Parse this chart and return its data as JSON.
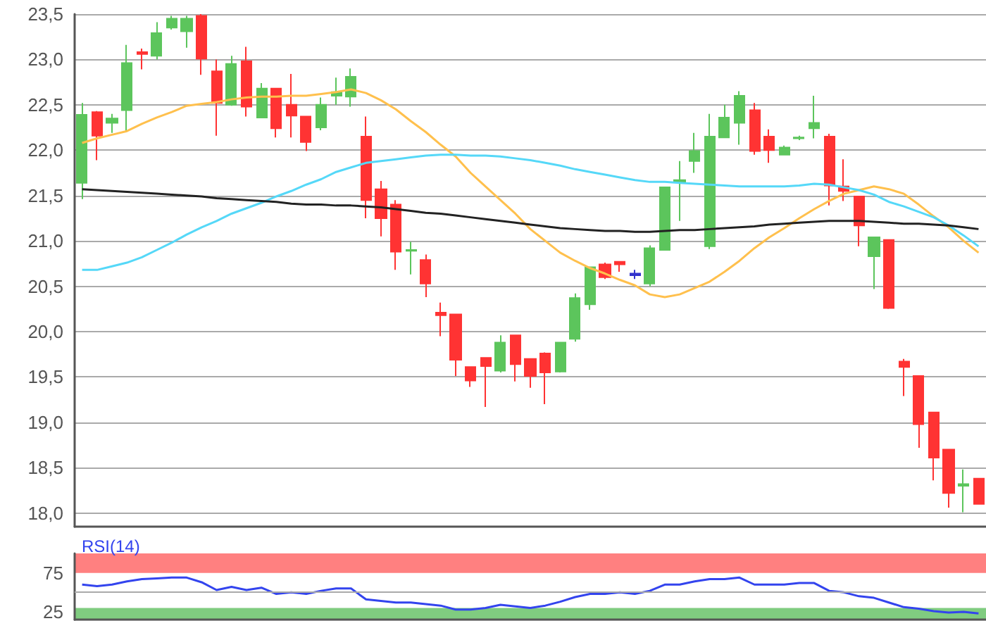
{
  "chart_data": [
    {
      "type": "candlestick",
      "tick_labels": "y",
      "grid": "y",
      "marker": "none",
      "categories": [
        null,
        null,
        null,
        null,
        null,
        null,
        null,
        null,
        null,
        null,
        null,
        null,
        null,
        null,
        null,
        null,
        null,
        null,
        null,
        null,
        null,
        null,
        null,
        null,
        null,
        null,
        null,
        null,
        null,
        null,
        null,
        null,
        null,
        null,
        null,
        null,
        null,
        null,
        null,
        null,
        null,
        null,
        null,
        null,
        null,
        null,
        null,
        null,
        null,
        null,
        null,
        null,
        null,
        null,
        null,
        null,
        null,
        null,
        null,
        null,
        null
      ],
      "ylim": [
        17.85,
        23.5
      ],
      "yticks": [
        {
          "value": 18,
          "label": "18,0"
        },
        {
          "value": 18.5,
          "label": "18,5"
        },
        {
          "value": 19,
          "label": "19,0"
        },
        {
          "value": 19.5,
          "label": "19,5"
        },
        {
          "value": 20,
          "label": "20,0"
        },
        {
          "value": 20.5,
          "label": "20,5"
        },
        {
          "value": 21,
          "label": "21,0"
        },
        {
          "value": 21.5,
          "label": "21,5"
        },
        {
          "value": 22,
          "label": "22,0"
        },
        {
          "value": 22.5,
          "label": "22,5"
        },
        {
          "value": 23,
          "label": "23,0"
        },
        {
          "value": 23.5,
          "label": "23,5"
        }
      ],
      "ohlc": [
        [
          21.64,
          22.52,
          21.46,
          22.39
        ],
        [
          22.42,
          22.43,
          21.89,
          22.16
        ],
        [
          22.3,
          22.4,
          22.19,
          22.35
        ],
        [
          22.44,
          23.16,
          22.21,
          22.96
        ],
        [
          23.08,
          23.12,
          22.89,
          23.06
        ],
        [
          23.04,
          23.41,
          23.0,
          23.29
        ],
        [
          23.35,
          23.48,
          23.33,
          23.45
        ],
        [
          23.31,
          23.48,
          23.13,
          23.45
        ],
        [
          23.48,
          23.5,
          22.83,
          23.01
        ],
        [
          22.87,
          23.0,
          22.16,
          22.52
        ],
        [
          22.5,
          23.04,
          22.49,
          22.95
        ],
        [
          22.98,
          23.14,
          22.37,
          22.48
        ],
        [
          22.36,
          22.74,
          22.36,
          22.68
        ],
        [
          22.68,
          22.68,
          22.14,
          22.24
        ],
        [
          22.5,
          22.84,
          22.14,
          22.38
        ],
        [
          22.37,
          22.37,
          21.99,
          22.09
        ],
        [
          22.25,
          22.58,
          22.22,
          22.5
        ],
        [
          22.6,
          22.8,
          22.5,
          22.64
        ],
        [
          22.59,
          22.9,
          22.48,
          22.81
        ],
        [
          22.15,
          22.37,
          21.25,
          21.45
        ],
        [
          21.57,
          21.66,
          21.05,
          21.25
        ],
        [
          21.4,
          21.45,
          20.68,
          20.88
        ],
        [
          20.89,
          20.99,
          20.63,
          20.9
        ],
        [
          20.79,
          20.85,
          20.38,
          20.53
        ],
        [
          20.21,
          20.32,
          19.95,
          20.18
        ],
        [
          20.19,
          20.19,
          19.51,
          19.69
        ],
        [
          19.61,
          19.61,
          19.39,
          19.46
        ],
        [
          19.71,
          19.71,
          19.17,
          19.62
        ],
        [
          19.57,
          19.96,
          19.55,
          19.88
        ],
        [
          19.96,
          19.96,
          19.45,
          19.64
        ],
        [
          19.7,
          19.7,
          19.38,
          19.51
        ],
        [
          19.76,
          19.77,
          19.2,
          19.55
        ],
        [
          19.56,
          19.88,
          19.55,
          19.88
        ],
        [
          19.92,
          20.42,
          19.89,
          20.37
        ],
        [
          20.3,
          20.71,
          20.24,
          20.71
        ],
        [
          20.74,
          20.76,
          20.58,
          20.6
        ],
        [
          20.77,
          20.77,
          20.66,
          20.74
        ],
        [
          20.64,
          20.68,
          20.58,
          20.62
        ],
        [
          20.53,
          20.95,
          20.5,
          20.92
        ],
        [
          20.9,
          21.59,
          20.9,
          21.59
        ],
        [
          21.65,
          21.88,
          21.22,
          21.67
        ],
        [
          21.88,
          22.19,
          21.75,
          21.99
        ],
        [
          20.94,
          22.4,
          20.91,
          22.15
        ],
        [
          22.14,
          22.5,
          22.14,
          22.36
        ],
        [
          22.3,
          22.65,
          22.06,
          22.6
        ],
        [
          22.44,
          22.52,
          21.95,
          21.99
        ],
        [
          22.15,
          22.23,
          21.86,
          22.0
        ],
        [
          21.95,
          22.05,
          21.95,
          22.03
        ],
        [
          22.13,
          22.16,
          22.11,
          22.14
        ],
        [
          22.24,
          22.6,
          22.13,
          22.3
        ],
        [
          22.15,
          22.18,
          21.39,
          21.61
        ],
        [
          21.6,
          21.9,
          21.44,
          21.55
        ],
        [
          21.49,
          21.49,
          20.94,
          21.17
        ],
        [
          20.83,
          21.04,
          20.47,
          21.04
        ],
        [
          21.01,
          21.01,
          20.25,
          20.26
        ],
        [
          19.67,
          19.7,
          19.29,
          19.61
        ],
        [
          19.51,
          19.51,
          18.72,
          18.98
        ],
        [
          19.11,
          19.11,
          18.36,
          18.61
        ],
        [
          18.7,
          18.7,
          18.06,
          18.22
        ],
        [
          18.3,
          18.48,
          18.01,
          18.32
        ],
        [
          18.38,
          18.38,
          18.1,
          18.1
        ]
      ],
      "colors": [
        "#5cc55c",
        "#ff3333",
        "#5cc55c",
        "#5cc55c",
        "#ff3333",
        "#5cc55c",
        "#5cc55c",
        "#5cc55c",
        "#ff3333",
        "#ff3333",
        "#5cc55c",
        "#ff3333",
        "#5cc55c",
        "#ff3333",
        "#ff3333",
        "#ff3333",
        "#5cc55c",
        "#5cc55c",
        "#5cc55c",
        "#ff3333",
        "#ff3333",
        "#ff3333",
        "#5cc55c",
        "#ff3333",
        "#ff3333",
        "#ff3333",
        "#ff3333",
        "#ff3333",
        "#5cc55c",
        "#ff3333",
        "#ff3333",
        "#ff3333",
        "#5cc55c",
        "#5cc55c",
        "#5cc55c",
        "#ff3333",
        "#ff3333",
        "#3333cc",
        "#5cc55c",
        "#5cc55c",
        "#5cc55c",
        "#5cc55c",
        "#5cc55c",
        "#5cc55c",
        "#5cc55c",
        "#ff3333",
        "#ff3333",
        "#5cc55c",
        "#5cc55c",
        "#5cc55c",
        "#ff3333",
        "#ff3333",
        "#ff3333",
        "#5cc55c",
        "#ff3333",
        "#ff3333",
        "#ff3333",
        "#ff3333",
        "#ff3333",
        "#5cc55c",
        "#ff3333"
      ],
      "series": [
        {
          "type": "line",
          "color": "#ffc04d",
          "values": [
            22.08,
            22.13,
            22.17,
            22.21,
            22.29,
            22.36,
            22.42,
            22.49,
            22.51,
            22.53,
            22.56,
            22.58,
            22.59,
            22.59,
            22.6,
            22.6,
            22.62,
            22.64,
            22.67,
            22.63,
            22.55,
            22.45,
            22.32,
            22.2,
            22.06,
            21.93,
            21.75,
            21.6,
            21.45,
            21.3,
            21.13,
            21.0,
            20.87,
            20.78,
            20.7,
            20.64,
            20.57,
            20.51,
            20.41,
            20.38,
            20.41,
            20.48,
            20.55,
            20.66,
            20.78,
            20.92,
            21.04,
            21.14,
            21.25,
            21.35,
            21.44,
            21.52,
            21.56,
            21.6,
            21.57,
            21.52,
            21.4,
            21.27,
            21.15,
            21.0,
            20.87
          ]
        },
        {
          "type": "line",
          "color": "#55d8f8",
          "values": [
            20.68,
            20.68,
            20.72,
            20.76,
            20.82,
            20.9,
            20.98,
            21.07,
            21.15,
            21.22,
            21.3,
            21.36,
            21.42,
            21.49,
            21.55,
            21.62,
            21.68,
            21.76,
            21.81,
            21.86,
            21.88,
            21.9,
            21.92,
            21.94,
            21.95,
            21.95,
            21.94,
            21.94,
            21.93,
            21.91,
            21.89,
            21.86,
            21.83,
            21.79,
            21.76,
            21.73,
            21.7,
            21.67,
            21.65,
            21.65,
            21.64,
            21.63,
            21.62,
            21.61,
            21.6,
            21.6,
            21.6,
            21.6,
            21.61,
            21.63,
            21.62,
            21.59,
            21.56,
            21.51,
            21.43,
            21.38,
            21.32,
            21.26,
            21.17,
            21.06,
            20.94
          ]
        },
        {
          "type": "line",
          "color": "#222222",
          "values": [
            21.57,
            21.56,
            21.55,
            21.54,
            21.53,
            21.52,
            21.51,
            21.5,
            21.49,
            21.47,
            21.46,
            21.45,
            21.44,
            21.43,
            21.41,
            21.4,
            21.4,
            21.39,
            21.39,
            21.38,
            21.37,
            21.35,
            21.33,
            21.31,
            21.3,
            21.28,
            21.26,
            21.24,
            21.22,
            21.2,
            21.18,
            21.16,
            21.14,
            21.13,
            21.12,
            21.11,
            21.11,
            21.1,
            21.1,
            21.11,
            21.12,
            21.12,
            21.13,
            21.14,
            21.15,
            21.16,
            21.18,
            21.19,
            21.2,
            21.21,
            21.22,
            21.22,
            21.22,
            21.21,
            21.2,
            21.19,
            21.19,
            21.18,
            21.17,
            21.15,
            21.13
          ]
        }
      ]
    },
    {
      "type": "line",
      "title": "RSI(14)",
      "tick_labels": "y",
      "marker": "none",
      "categories": [
        null,
        null,
        null,
        null,
        null,
        null,
        null,
        null,
        null,
        null,
        null,
        null,
        null,
        null,
        null,
        null,
        null,
        null,
        null,
        null,
        null,
        null,
        null,
        null,
        null,
        null,
        null,
        null,
        null,
        null,
        null,
        null,
        null,
        null,
        null,
        null,
        null,
        null,
        null,
        null,
        null,
        null,
        null,
        null,
        null,
        null,
        null,
        null,
        null,
        null,
        null,
        null,
        null,
        null,
        null,
        null,
        null,
        null,
        null,
        null,
        null
      ],
      "ylim": [
        15,
        100
      ],
      "yticks": [
        25,
        75
      ],
      "series": [
        {
          "color": "#3344ee",
          "values": [
            60,
            58,
            60,
            64,
            67,
            68,
            69,
            69,
            63,
            53,
            57,
            53,
            56,
            48,
            50,
            48,
            52,
            55,
            55,
            41,
            39,
            37,
            37,
            35,
            33,
            28,
            28,
            30,
            34,
            32,
            30,
            33,
            38,
            44,
            48,
            48,
            50,
            48,
            52,
            60,
            60,
            64,
            67,
            67,
            69,
            60,
            60,
            60,
            62,
            62,
            52,
            50,
            45,
            43,
            37,
            31,
            29,
            26,
            24,
            25,
            23
          ]
        }
      ],
      "bands": [
        {
          "axis": "y",
          "from": 75,
          "to": 100,
          "color": "#ff8080"
        },
        {
          "axis": "y",
          "from": 15,
          "to": 30,
          "color": "#80cc80"
        }
      ],
      "ref_lines": [
        {
          "axis": "y",
          "value": 50,
          "color": "#aaaaaa"
        }
      ]
    }
  ]
}
